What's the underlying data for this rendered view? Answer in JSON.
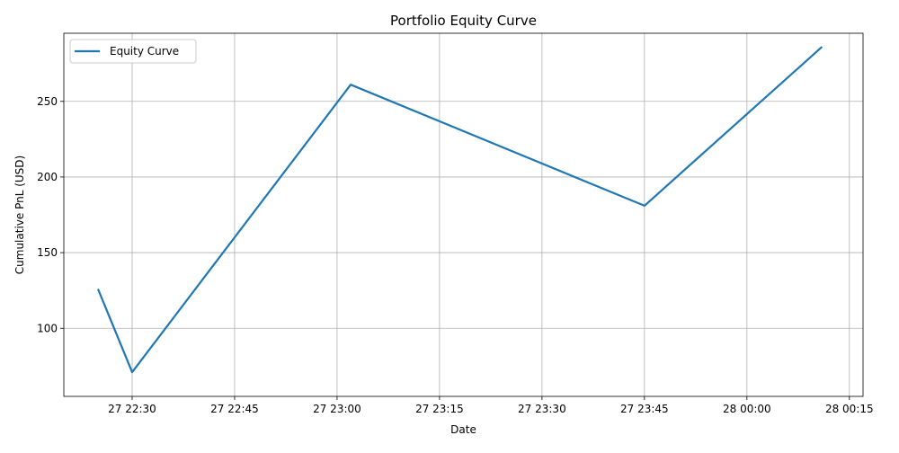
{
  "chart_data": {
    "type": "line",
    "title": "Portfolio Equity Curve",
    "xlabel": "Date",
    "ylabel": "Cumulative PnL (USD)",
    "x_scale": "time",
    "xlim": [
      "27 22:20",
      "28 00:17"
    ],
    "ylim": [
      55,
      295
    ],
    "x_ticks": [
      "27 22:30",
      "27 22:45",
      "27 23:00",
      "27 23:15",
      "27 23:30",
      "27 23:45",
      "28 00:00",
      "28 00:15"
    ],
    "y_ticks": [
      100,
      150,
      200,
      250
    ],
    "grid": true,
    "legend": {
      "position": "upper-left",
      "entries": [
        "Equity Curve"
      ]
    },
    "series": [
      {
        "name": "Equity Curve",
        "color": "#1f77b4",
        "points": [
          {
            "x": "27 22:25",
            "y": 126
          },
          {
            "x": "27 22:30",
            "y": 71
          },
          {
            "x": "27 23:02",
            "y": 261
          },
          {
            "x": "27 23:45",
            "y": 181
          },
          {
            "x": "28 00:11",
            "y": 286
          }
        ]
      }
    ]
  }
}
